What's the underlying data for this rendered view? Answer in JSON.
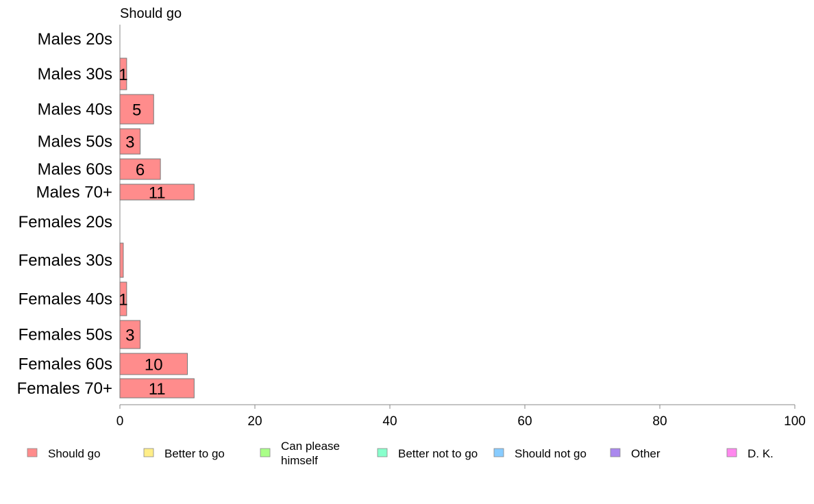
{
  "chart_data": {
    "type": "bar",
    "orientation": "horizontal",
    "facet_title": "Should go",
    "categories": [
      "Males 20s",
      "Males 30s",
      "Males 40s",
      "Males 50s",
      "Males 60s",
      "Males 70+",
      "Females 20s",
      "Females 30s",
      "Females 40s",
      "Females 50s",
      "Females 60s",
      "Females 70+"
    ],
    "series": [
      {
        "name": "Should go",
        "color": "#ff8c8c",
        "values": [
          0,
          1,
          5,
          3,
          6,
          11,
          0,
          0.5,
          1,
          3,
          10,
          11
        ],
        "data_labels": [
          "",
          "1",
          "5",
          "3",
          "6",
          "11",
          "",
          "",
          "1",
          "3",
          "10",
          "11"
        ]
      }
    ],
    "xlim": [
      0,
      100
    ],
    "x_ticks": [
      "0",
      "20",
      "40",
      "60",
      "80",
      "100"
    ],
    "grid": false,
    "legend_position": "bottom",
    "legend": [
      {
        "label": "Should go",
        "color": "#ff8c8c"
      },
      {
        "label": "Better to go",
        "color": "#ffee88"
      },
      {
        "label": "Can please\nhimself",
        "color": "#aaff88"
      },
      {
        "label": "Better not to go",
        "color": "#88ffcc"
      },
      {
        "label": "Should not go",
        "color": "#88ccff"
      },
      {
        "label": "Other",
        "color": "#aa88ee"
      },
      {
        "label": "D. K.",
        "color": "#ff88ee"
      }
    ]
  }
}
